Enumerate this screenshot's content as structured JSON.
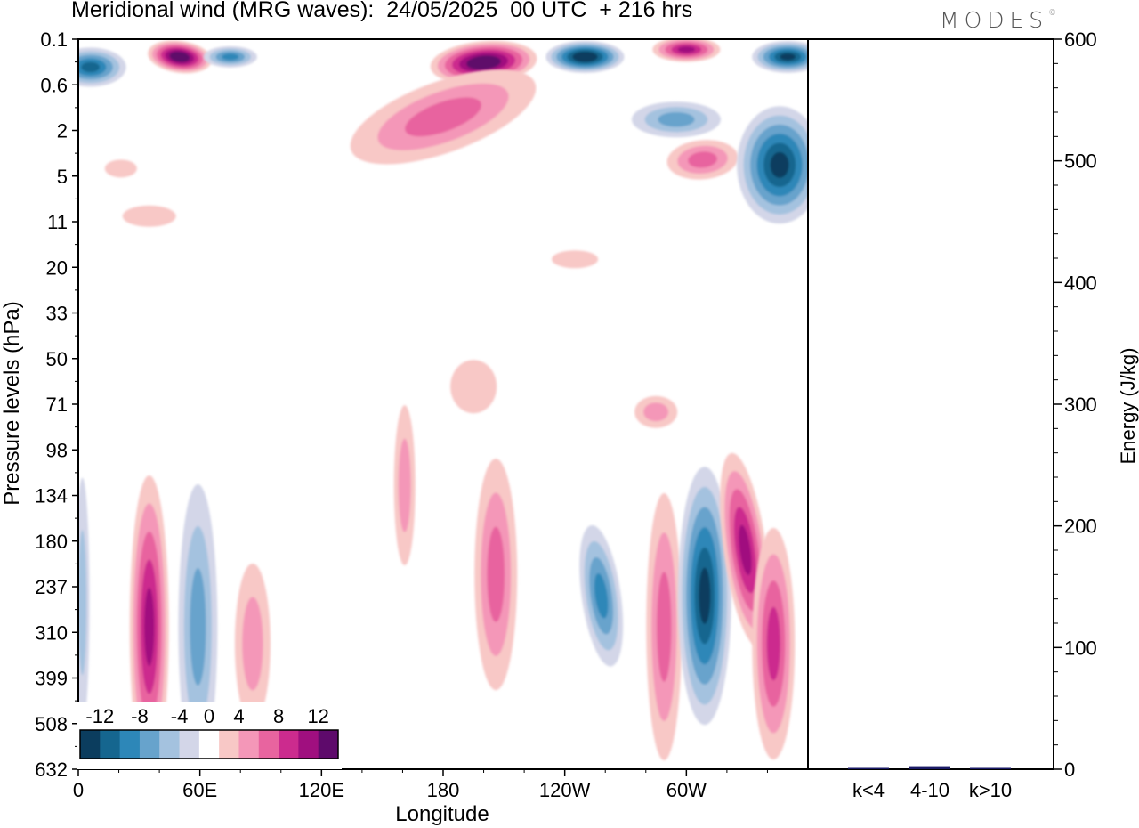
{
  "title": "Meridional wind (MRG waves):  24/05/2025  00 UTC  + 216 hrs",
  "logo": "MODES",
  "logo_mark": "©",
  "colors": {
    "neg": [
      "#0b3d5e",
      "#15668f",
      "#2d87b8",
      "#67a3cc",
      "#a4c2df",
      "#d3d6e8"
    ],
    "zero": "#ffffff",
    "pos": [
      "#f8c8c6",
      "#f497b8",
      "#e8649f",
      "#cc2b8e",
      "#a00f7f",
      "#5e0a6b"
    ],
    "bar": "#1a1a66"
  },
  "chart_data": [
    {
      "type": "heatmap",
      "title": "Meridional wind (MRG waves):  24/05/2025  00 UTC  + 216 hrs",
      "xlabel": "Longitude",
      "ylabel": "Pressure levels (hPa)",
      "xticks": [
        "0",
        "60E",
        "120E",
        "180",
        "120W",
        "60W"
      ],
      "yticks": [
        "0.1",
        "0.6",
        "2",
        "5",
        "11",
        "20",
        "33",
        "50",
        "71",
        "98",
        "134",
        "180",
        "237",
        "310",
        "399",
        "508",
        "632"
      ],
      "colorbar_ticks": [
        "-12",
        "-8",
        "-4",
        "0",
        "4",
        "8",
        "12"
      ],
      "colorbar_levels": [
        -14,
        -12,
        -10,
        -8,
        -6,
        -4,
        -2,
        2,
        4,
        6,
        8,
        10,
        12,
        14
      ],
      "features": [
        {
          "lon": 6,
          "p": 0.3,
          "v": -10
        },
        {
          "lon": 50,
          "p": 0.2,
          "v": 14
        },
        {
          "lon": 75,
          "p": 0.2,
          "v": -8
        },
        {
          "lon": 200,
          "p": 0.25,
          "v": 14
        },
        {
          "lon": 250,
          "p": 0.2,
          "v": -14
        },
        {
          "lon": 300,
          "p": 0.15,
          "v": 10
        },
        {
          "lon": 350,
          "p": 0.2,
          "v": -12
        },
        {
          "lon": 180,
          "p": 1.4,
          "v": 6
        },
        {
          "lon": 295,
          "p": 1.5,
          "v": -7
        },
        {
          "lon": 308,
          "p": 3.6,
          "v": 6
        },
        {
          "lon": 346,
          "p": 4.0,
          "v": -12
        },
        {
          "lon": 21,
          "p": 4.3,
          "v": 3
        },
        {
          "lon": 35,
          "p": 10,
          "v": 2
        },
        {
          "lon": 245,
          "p": 18,
          "v": 3
        },
        {
          "lon": 35,
          "p": 300,
          "v": 10
        },
        {
          "lon": 59,
          "p": 300,
          "v": -7
        },
        {
          "lon": 86,
          "p": 330,
          "v": 5
        },
        {
          "lon": 161,
          "p": 125,
          "v": 5
        },
        {
          "lon": 206,
          "p": 220,
          "v": 7
        },
        {
          "lon": 258,
          "p": 250,
          "v": -9
        },
        {
          "lon": 289,
          "p": 300,
          "v": 7
        },
        {
          "lon": 309,
          "p": 250,
          "v": -13
        },
        {
          "lon": 329,
          "p": 190,
          "v": 11
        },
        {
          "lon": 343,
          "p": 330,
          "v": 8
        },
        {
          "lon": 2,
          "p": 260,
          "v": -5
        },
        {
          "lon": 195,
          "p": 62,
          "v": 3
        },
        {
          "lon": 285,
          "p": 75,
          "v": 4
        }
      ]
    },
    {
      "type": "bar",
      "ylabel": "Energy (J/kg)",
      "ylim": [
        0,
        600
      ],
      "yticks": [
        "0",
        "100",
        "200",
        "300",
        "400",
        "500",
        "600"
      ],
      "categories": [
        "k<4",
        "4-10",
        "k>10"
      ],
      "values": [
        0.3,
        2.5,
        0.3
      ]
    }
  ]
}
